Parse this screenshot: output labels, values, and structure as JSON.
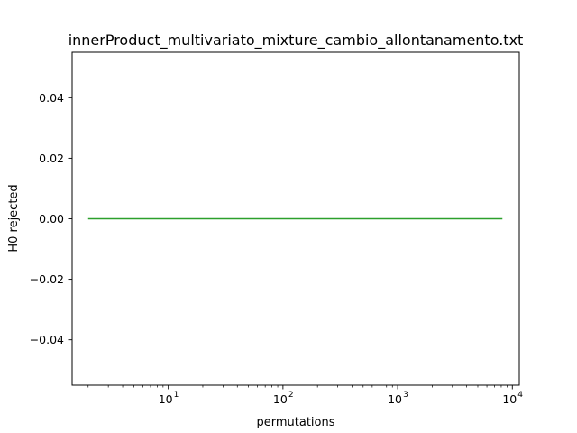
{
  "chart_data": {
    "type": "line",
    "title": "innerProduct_multivariato_mixture_cambio_allontanamento.txt",
    "xlabel": "permutations",
    "ylabel": "H0 rejected",
    "xscale": "log",
    "xlim": [
      1.45,
      11500
    ],
    "ylim": [
      -0.055,
      0.055
    ],
    "x_ticks": [
      {
        "base": "10",
        "exp": "1",
        "value": 10
      },
      {
        "base": "10",
        "exp": "2",
        "value": 100
      },
      {
        "base": "10",
        "exp": "3",
        "value": 1000
      },
      {
        "base": "10",
        "exp": "4",
        "value": 10000
      }
    ],
    "y_ticks": [
      {
        "label": "0.04",
        "value": 0.04
      },
      {
        "label": "0.02",
        "value": 0.02
      },
      {
        "label": "0.00",
        "value": 0.0
      },
      {
        "label": "−0.02",
        "value": -0.02
      },
      {
        "label": "−0.04",
        "value": -0.04
      }
    ],
    "grid": false,
    "series": [
      {
        "color": "#2ca02c",
        "x": [
          2,
          8192
        ],
        "y": [
          0,
          0
        ]
      }
    ]
  }
}
